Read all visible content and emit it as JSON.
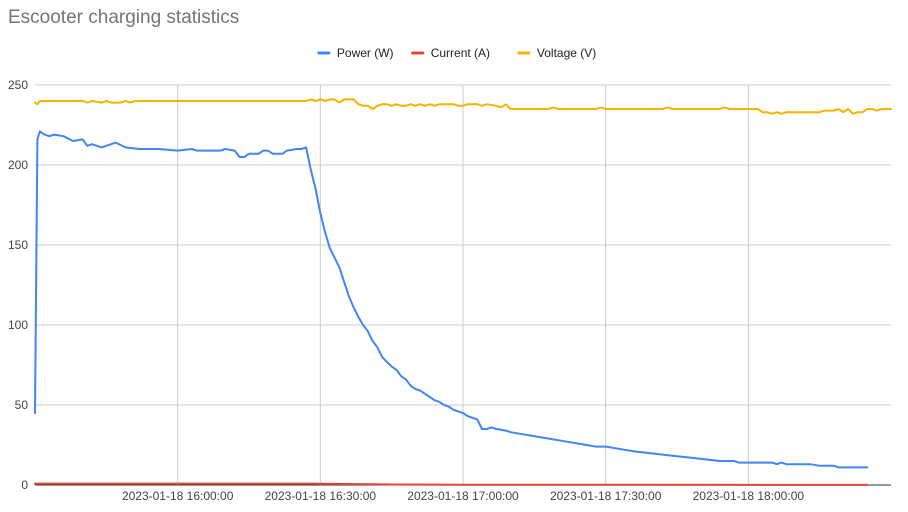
{
  "chart_data": {
    "type": "line",
    "title": "Escooter charging statistics",
    "xlabel": "",
    "ylabel": "",
    "x_range": [
      "2023-01-18 15:30:00",
      "2023-01-18 18:30:00"
    ],
    "ylim": [
      0,
      250
    ],
    "y_ticks": [
      0,
      50,
      100,
      150,
      200,
      250
    ],
    "x_ticks": [
      {
        "t": "2023-01-18 16:00:00",
        "label": "2023-01-18 16:00:00"
      },
      {
        "t": "2023-01-18 16:30:00",
        "label": "2023-01-18 16:30:00"
      },
      {
        "t": "2023-01-18 17:00:00",
        "label": "2023-01-18 17:00:00"
      },
      {
        "t": "2023-01-18 17:30:00",
        "label": "2023-01-18 17:30:00"
      },
      {
        "t": "2023-01-18 18:00:00",
        "label": "2023-01-18 18:00:00"
      }
    ],
    "grid": true,
    "legend": "top",
    "series": [
      {
        "name": "Power (W)",
        "color": "#4285f4",
        "points": [
          [
            "2023-01-18 15:30:00",
            45
          ],
          [
            "2023-01-18 15:30:30",
            216
          ],
          [
            "2023-01-18 15:31:00",
            221
          ],
          [
            "2023-01-18 15:32:00",
            219
          ],
          [
            "2023-01-18 15:33:00",
            218
          ],
          [
            "2023-01-18 15:34:00",
            219
          ],
          [
            "2023-01-18 15:36:00",
            218
          ],
          [
            "2023-01-18 15:38:00",
            215
          ],
          [
            "2023-01-18 15:40:00",
            216
          ],
          [
            "2023-01-18 15:41:00",
            212
          ],
          [
            "2023-01-18 15:42:00",
            213
          ],
          [
            "2023-01-18 15:44:00",
            211
          ],
          [
            "2023-01-18 15:46:00",
            213
          ],
          [
            "2023-01-18 15:47:00",
            214
          ],
          [
            "2023-01-18 15:49:00",
            211
          ],
          [
            "2023-01-18 15:52:00",
            210
          ],
          [
            "2023-01-18 15:56:00",
            210
          ],
          [
            "2023-01-18 16:00:00",
            209
          ],
          [
            "2023-01-18 16:03:00",
            210
          ],
          [
            "2023-01-18 16:04:00",
            209
          ],
          [
            "2023-01-18 16:09:00",
            209
          ],
          [
            "2023-01-18 16:10:00",
            210
          ],
          [
            "2023-01-18 16:12:00",
            209
          ],
          [
            "2023-01-18 16:13:00",
            205
          ],
          [
            "2023-01-18 16:14:00",
            205
          ],
          [
            "2023-01-18 16:15:00",
            207
          ],
          [
            "2023-01-18 16:17:00",
            207
          ],
          [
            "2023-01-18 16:18:00",
            209
          ],
          [
            "2023-01-18 16:19:00",
            209
          ],
          [
            "2023-01-18 16:20:00",
            207
          ],
          [
            "2023-01-18 16:22:00",
            207
          ],
          [
            "2023-01-18 16:23:00",
            209
          ],
          [
            "2023-01-18 16:25:00",
            210
          ],
          [
            "2023-01-18 16:26:00",
            210
          ],
          [
            "2023-01-18 16:27:00",
            211
          ],
          [
            "2023-01-18 16:28:00",
            197
          ],
          [
            "2023-01-18 16:29:00",
            185
          ],
          [
            "2023-01-18 16:30:00",
            170
          ],
          [
            "2023-01-18 16:31:00",
            158
          ],
          [
            "2023-01-18 16:32:00",
            148
          ],
          [
            "2023-01-18 16:33:00",
            142
          ],
          [
            "2023-01-18 16:34:00",
            136
          ],
          [
            "2023-01-18 16:35:00",
            127
          ],
          [
            "2023-01-18 16:36:00",
            118
          ],
          [
            "2023-01-18 16:37:00",
            111
          ],
          [
            "2023-01-18 16:38:00",
            105
          ],
          [
            "2023-01-18 16:39:00",
            100
          ],
          [
            "2023-01-18 16:40:00",
            96
          ],
          [
            "2023-01-18 16:41:00",
            90
          ],
          [
            "2023-01-18 16:42:00",
            86
          ],
          [
            "2023-01-18 16:43:00",
            80
          ],
          [
            "2023-01-18 16:44:00",
            77
          ],
          [
            "2023-01-18 16:45:00",
            74
          ],
          [
            "2023-01-18 16:46:00",
            72
          ],
          [
            "2023-01-18 16:47:00",
            68
          ],
          [
            "2023-01-18 16:48:00",
            66
          ],
          [
            "2023-01-18 16:49:00",
            62
          ],
          [
            "2023-01-18 16:50:00",
            60
          ],
          [
            "2023-01-18 16:51:00",
            59
          ],
          [
            "2023-01-18 16:52:00",
            57
          ],
          [
            "2023-01-18 16:53:00",
            55
          ],
          [
            "2023-01-18 16:54:00",
            53
          ],
          [
            "2023-01-18 16:55:00",
            52
          ],
          [
            "2023-01-18 16:56:00",
            50
          ],
          [
            "2023-01-18 16:57:00",
            49
          ],
          [
            "2023-01-18 16:58:00",
            47
          ],
          [
            "2023-01-18 16:59:00",
            46
          ],
          [
            "2023-01-18 17:00:00",
            45
          ],
          [
            "2023-01-18 17:01:00",
            43
          ],
          [
            "2023-01-18 17:02:00",
            42
          ],
          [
            "2023-01-18 17:03:00",
            41
          ],
          [
            "2023-01-18 17:04:00",
            35
          ],
          [
            "2023-01-18 17:05:00",
            35
          ],
          [
            "2023-01-18 17:06:00",
            36
          ],
          [
            "2023-01-18 17:07:00",
            35
          ],
          [
            "2023-01-18 17:09:00",
            34
          ],
          [
            "2023-01-18 17:10:00",
            33
          ],
          [
            "2023-01-18 17:12:00",
            32
          ],
          [
            "2023-01-18 17:14:00",
            31
          ],
          [
            "2023-01-18 17:16:00",
            30
          ],
          [
            "2023-01-18 17:18:00",
            29
          ],
          [
            "2023-01-18 17:20:00",
            28
          ],
          [
            "2023-01-18 17:22:00",
            27
          ],
          [
            "2023-01-18 17:24:00",
            26
          ],
          [
            "2023-01-18 17:26:00",
            25
          ],
          [
            "2023-01-18 17:28:00",
            24
          ],
          [
            "2023-01-18 17:30:00",
            24
          ],
          [
            "2023-01-18 17:32:00",
            23
          ],
          [
            "2023-01-18 17:34:00",
            22
          ],
          [
            "2023-01-18 17:36:00",
            21
          ],
          [
            "2023-01-18 17:39:00",
            20
          ],
          [
            "2023-01-18 17:42:00",
            19
          ],
          [
            "2023-01-18 17:45:00",
            18
          ],
          [
            "2023-01-18 17:48:00",
            17
          ],
          [
            "2023-01-18 17:51:00",
            16
          ],
          [
            "2023-01-18 17:54:00",
            15
          ],
          [
            "2023-01-18 17:57:00",
            15
          ],
          [
            "2023-01-18 17:58:00",
            14
          ],
          [
            "2023-01-18 18:03:00",
            14
          ],
          [
            "2023-01-18 18:05:00",
            14
          ],
          [
            "2023-01-18 18:06:00",
            13
          ],
          [
            "2023-01-18 18:07:00",
            14
          ],
          [
            "2023-01-18 18:08:00",
            13
          ],
          [
            "2023-01-18 18:13:00",
            13
          ],
          [
            "2023-01-18 18:15:00",
            12
          ],
          [
            "2023-01-18 18:18:00",
            12
          ],
          [
            "2023-01-18 18:19:00",
            11
          ],
          [
            "2023-01-18 18:25:00",
            11
          ]
        ]
      },
      {
        "name": "Current (A)",
        "color": "#db4437",
        "points": [
          [
            "2023-01-18 15:30:00",
            0.9
          ],
          [
            "2023-01-18 16:28:00",
            0.9
          ],
          [
            "2023-01-18 16:35:00",
            0.6
          ],
          [
            "2023-01-18 16:45:00",
            0.3
          ],
          [
            "2023-01-18 17:00:00",
            0.2
          ],
          [
            "2023-01-18 17:30:00",
            0.1
          ],
          [
            "2023-01-18 18:25:00",
            0.05
          ]
        ]
      },
      {
        "name": "Voltage (V)",
        "color": "#f4b400",
        "points": [
          [
            "2023-01-18 15:30:00",
            239
          ],
          [
            "2023-01-18 15:30:30",
            238
          ],
          [
            "2023-01-18 15:31:00",
            240
          ],
          [
            "2023-01-18 15:40:00",
            240
          ],
          [
            "2023-01-18 15:41:00",
            239
          ],
          [
            "2023-01-18 15:42:00",
            240
          ],
          [
            "2023-01-18 15:44:00",
            239
          ],
          [
            "2023-01-18 15:45:00",
            240
          ],
          [
            "2023-01-18 15:46:00",
            239
          ],
          [
            "2023-01-18 15:48:00",
            239
          ],
          [
            "2023-01-18 15:49:00",
            240
          ],
          [
            "2023-01-18 15:50:00",
            239
          ],
          [
            "2023-01-18 15:51:00",
            240
          ],
          [
            "2023-01-18 16:27:00",
            240
          ],
          [
            "2023-01-18 16:28:00",
            241
          ],
          [
            "2023-01-18 16:29:00",
            240
          ],
          [
            "2023-01-18 16:30:00",
            241
          ],
          [
            "2023-01-18 16:31:00",
            240
          ],
          [
            "2023-01-18 16:32:00",
            241
          ],
          [
            "2023-01-18 16:33:00",
            241
          ],
          [
            "2023-01-18 16:34:00",
            239
          ],
          [
            "2023-01-18 16:35:00",
            241
          ],
          [
            "2023-01-18 16:37:00",
            241
          ],
          [
            "2023-01-18 16:38:00",
            238
          ],
          [
            "2023-01-18 16:39:00",
            237
          ],
          [
            "2023-01-18 16:40:00",
            237
          ],
          [
            "2023-01-18 16:41:00",
            235
          ],
          [
            "2023-01-18 16:42:00",
            237
          ],
          [
            "2023-01-18 16:43:00",
            238
          ],
          [
            "2023-01-18 16:44:00",
            238
          ],
          [
            "2023-01-18 16:45:00",
            237
          ],
          [
            "2023-01-18 16:46:00",
            238
          ],
          [
            "2023-01-18 16:47:00",
            237
          ],
          [
            "2023-01-18 16:48:00",
            237
          ],
          [
            "2023-01-18 16:49:00",
            238
          ],
          [
            "2023-01-18 16:50:00",
            237
          ],
          [
            "2023-01-18 16:51:00",
            238
          ],
          [
            "2023-01-18 16:52:00",
            237
          ],
          [
            "2023-01-18 16:53:00",
            238
          ],
          [
            "2023-01-18 16:54:00",
            237
          ],
          [
            "2023-01-18 16:55:00",
            238
          ],
          [
            "2023-01-18 16:58:00",
            238
          ],
          [
            "2023-01-18 16:59:00",
            237
          ],
          [
            "2023-01-18 17:00:00",
            237
          ],
          [
            "2023-01-18 17:01:00",
            238
          ],
          [
            "2023-01-18 17:03:00",
            238
          ],
          [
            "2023-01-18 17:04:00",
            237
          ],
          [
            "2023-01-18 17:05:00",
            238
          ],
          [
            "2023-01-18 17:07:00",
            237
          ],
          [
            "2023-01-18 17:08:00",
            236
          ],
          [
            "2023-01-18 17:09:00",
            238
          ],
          [
            "2023-01-18 17:10:00",
            235
          ],
          [
            "2023-01-18 17:18:00",
            235
          ],
          [
            "2023-01-18 17:19:00",
            236
          ],
          [
            "2023-01-18 17:20:00",
            235
          ],
          [
            "2023-01-18 17:28:00",
            235
          ],
          [
            "2023-01-18 17:29:00",
            236
          ],
          [
            "2023-01-18 17:30:00",
            235
          ],
          [
            "2023-01-18 17:42:00",
            235
          ],
          [
            "2023-01-18 17:43:00",
            236
          ],
          [
            "2023-01-18 17:44:00",
            235
          ],
          [
            "2023-01-18 17:54:00",
            235
          ],
          [
            "2023-01-18 17:55:00",
            236
          ],
          [
            "2023-01-18 17:56:00",
            235
          ],
          [
            "2023-01-18 18:02:00",
            235
          ],
          [
            "2023-01-18 18:03:00",
            233
          ],
          [
            "2023-01-18 18:04:00",
            233
          ],
          [
            "2023-01-18 18:05:00",
            232
          ],
          [
            "2023-01-18 18:06:00",
            233
          ],
          [
            "2023-01-18 18:07:00",
            232
          ],
          [
            "2023-01-18 18:08:00",
            233
          ],
          [
            "2023-01-18 18:15:00",
            233
          ],
          [
            "2023-01-18 18:16:00",
            234
          ],
          [
            "2023-01-18 18:18:00",
            234
          ],
          [
            "2023-01-18 18:19:00",
            235
          ],
          [
            "2023-01-18 18:20:00",
            233
          ],
          [
            "2023-01-18 18:21:00",
            235
          ],
          [
            "2023-01-18 18:22:00",
            232
          ],
          [
            "2023-01-18 18:23:00",
            233
          ],
          [
            "2023-01-18 18:24:00",
            233
          ],
          [
            "2023-01-18 18:25:00",
            235
          ],
          [
            "2023-01-18 18:26:00",
            235
          ],
          [
            "2023-01-18 18:27:00",
            234
          ],
          [
            "2023-01-18 18:28:00",
            235
          ],
          [
            "2023-01-18 18:30:00",
            235
          ]
        ]
      }
    ]
  }
}
